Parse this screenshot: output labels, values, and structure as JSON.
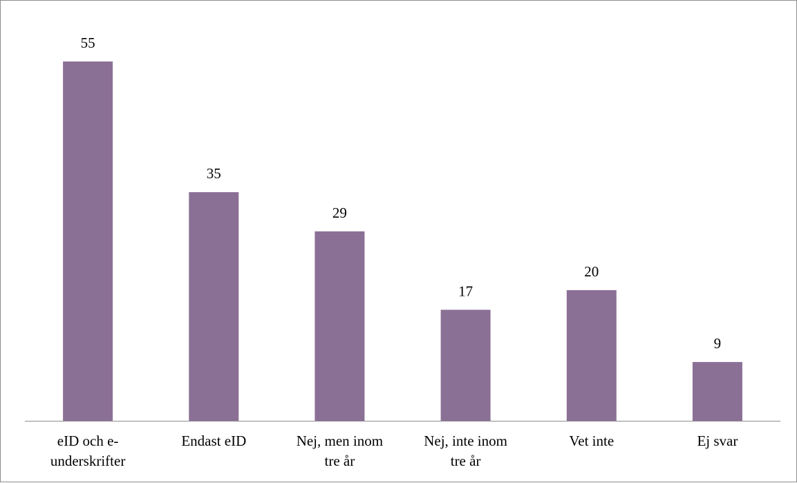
{
  "chart_data": {
    "type": "bar",
    "categories": [
      [
        "eID och e-",
        "underskrifter"
      ],
      [
        "Endast eID"
      ],
      [
        "Nej, men inom",
        "tre år"
      ],
      [
        "Nej, inte inom",
        "tre år"
      ],
      [
        "Vet inte"
      ],
      [
        "Ej svar"
      ]
    ],
    "values": [
      55,
      35,
      29,
      17,
      20,
      9
    ],
    "data_labels": [
      "55",
      "35",
      "29",
      "17",
      "20",
      "9"
    ],
    "title": "",
    "xlabel": "",
    "ylabel": "",
    "ylim": [
      0,
      55
    ],
    "grid": false,
    "legend": "none",
    "bar_color": "#8b7096",
    "axis_color": "#8c8c8c"
  }
}
